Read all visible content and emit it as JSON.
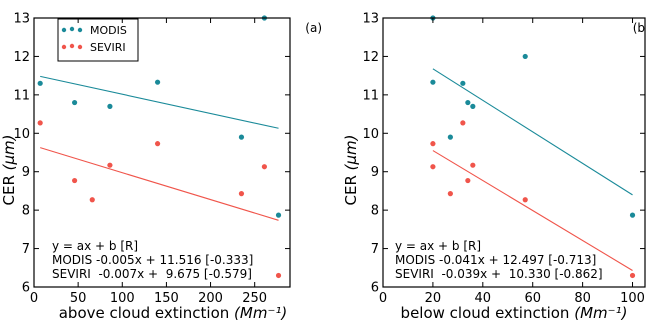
{
  "colors": {
    "MODIS": "#1a8a99",
    "SEVIRI": "#f0554b"
  },
  "legend": [
    {
      "name": "MODIS",
      "color_key": "MODIS"
    },
    {
      "name": "SEVIRI",
      "color_key": "SEVIRI"
    }
  ],
  "y_label_main": "CER",
  "y_label_unit": "(μm)",
  "chart_data": [
    {
      "type": "scatter",
      "panel_label": "(a)",
      "xlabel_main": "above cloud extinction ",
      "xlabel_unit": "(Mm⁻¹)",
      "xlim": [
        0,
        290
      ],
      "ylim": [
        6,
        13
      ],
      "xticks": [
        0,
        50,
        100,
        150,
        200,
        250
      ],
      "yticks": [
        6,
        7,
        8,
        9,
        10,
        11,
        12,
        13
      ],
      "series": [
        {
          "name": "MODIS",
          "color_key": "MODIS",
          "x": [
            7,
            46,
            86,
            140,
            235,
            261,
            277
          ],
          "y": [
            11.3,
            10.8,
            10.7,
            11.33,
            9.9,
            13.0,
            7.87
          ],
          "fit": {
            "slope": -0.005,
            "intercept": 11.516
          }
        },
        {
          "name": "SEVIRI",
          "color_key": "SEVIRI",
          "x": [
            7,
            46,
            66,
            86,
            140,
            235,
            261,
            277
          ],
          "y": [
            10.27,
            8.77,
            8.27,
            9.17,
            9.73,
            8.43,
            9.13,
            6.3
          ],
          "fit": {
            "slope": -0.007,
            "intercept": 9.675
          }
        }
      ],
      "equations": [
        "y = ax + b [R]",
        "MODIS -0.005x + 11.516 [-0.333]",
        "SEVIRI  -0.007x +  9.675 [-0.579]"
      ]
    },
    {
      "type": "scatter",
      "panel_label": "(b",
      "xlabel_main": "below cloud extinction",
      "xlabel_unit": "(Mm⁻¹)",
      "xlim": [
        0,
        105
      ],
      "ylim": [
        6,
        13
      ],
      "xticks": [
        0,
        20,
        40,
        60,
        80,
        100
      ],
      "yticks": [
        6,
        7,
        8,
        9,
        10,
        11,
        12,
        13
      ],
      "series": [
        {
          "name": "MODIS",
          "color_key": "MODIS",
          "x": [
            20,
            20,
            27,
            32,
            34,
            36,
            57,
            100
          ],
          "y": [
            11.33,
            13.0,
            9.9,
            11.3,
            10.8,
            10.7,
            12.0,
            7.87
          ],
          "fit": {
            "slope": -0.041,
            "intercept": 12.497
          }
        },
        {
          "name": "SEVIRI",
          "color_key": "SEVIRI",
          "x": [
            20,
            20,
            27,
            32,
            34,
            36,
            57,
            100
          ],
          "y": [
            9.73,
            9.13,
            8.43,
            10.27,
            8.77,
            9.17,
            8.27,
            6.3
          ],
          "fit": {
            "slope": -0.039,
            "intercept": 10.33
          }
        }
      ],
      "equations": [
        "y = ax + b [R]",
        "MODIS -0.041x + 12.497 [-0.713]",
        "SEVIRI  -0.039x +  10.330 [-0.862]"
      ]
    }
  ]
}
